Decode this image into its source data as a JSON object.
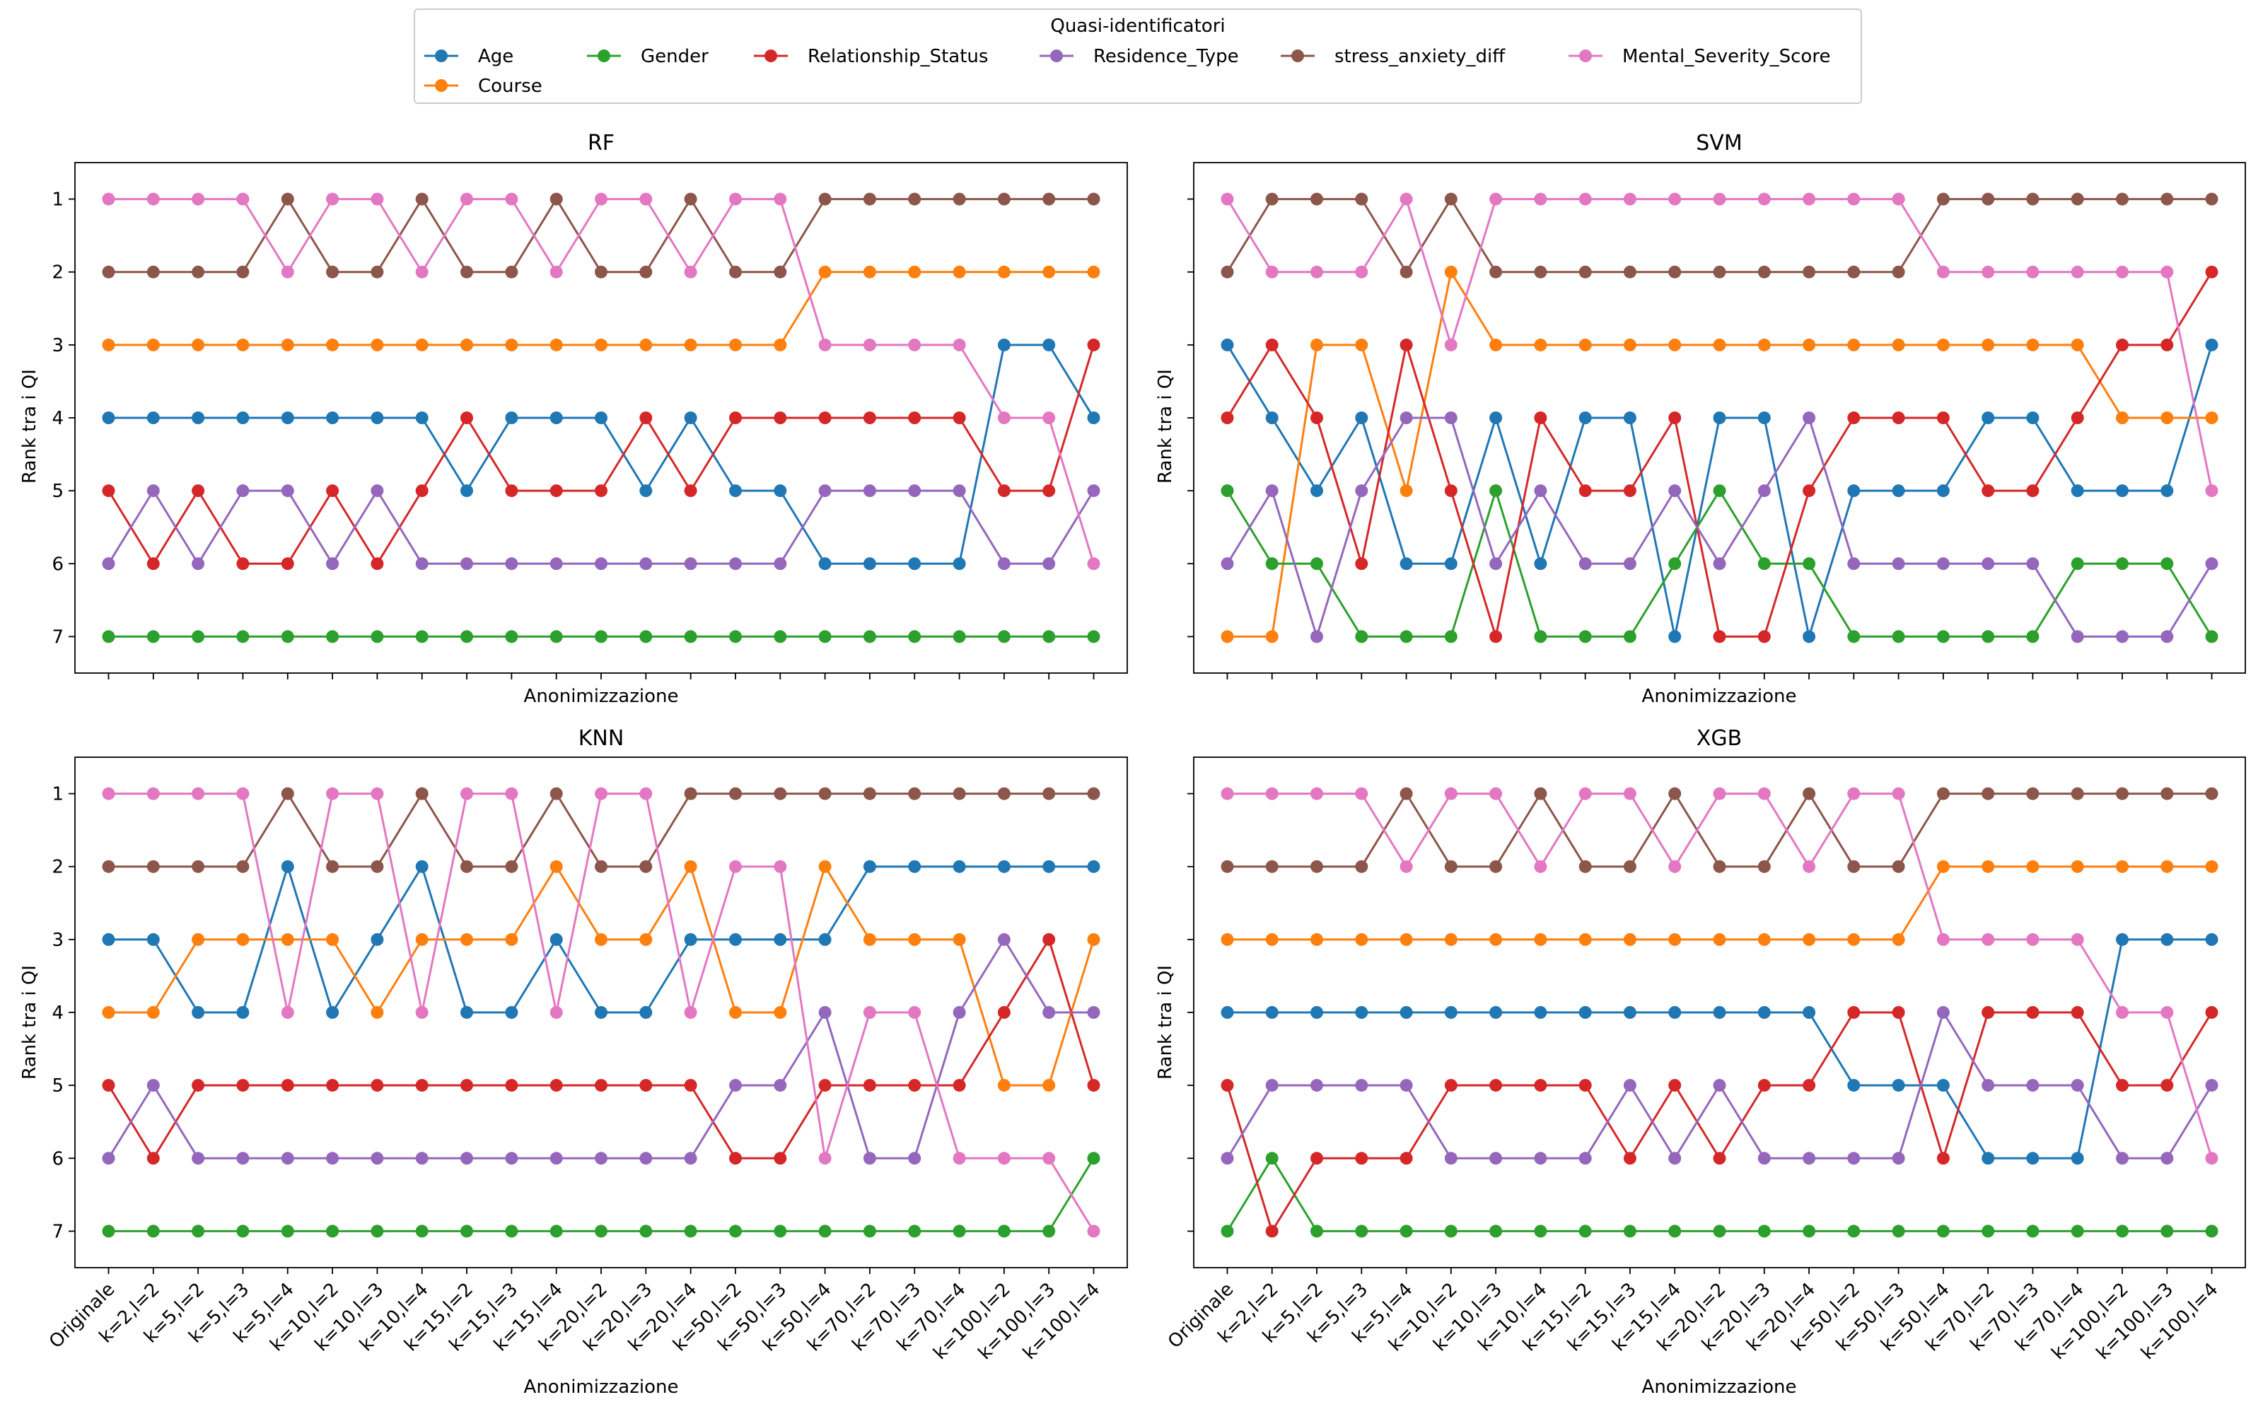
{
  "legend": {
    "title": "Quasi-identificatori",
    "location": "top-center"
  },
  "shared": {
    "xlabel": "Anonimizzazione",
    "ylabel": "Rank tra i QI",
    "yticks": [
      "1",
      "2",
      "3",
      "4",
      "5",
      "6",
      "7"
    ],
    "ylim": [
      7.5,
      0.5
    ],
    "y_inverted": true,
    "grid": false,
    "categories": [
      "Originale",
      "k=2,l=2",
      "k=5,l=2",
      "k=5,l=3",
      "k=5,l=4",
      "k=10,l=2",
      "k=10,l=3",
      "k=10,l=4",
      "k=15,l=2",
      "k=15,l=3",
      "k=15,l=4",
      "k=20,l=2",
      "k=20,l=3",
      "k=20,l=4",
      "k=50,l=2",
      "k=50,l=3",
      "k=50,l=4",
      "k=70,l=2",
      "k=70,l=3",
      "k=70,l=4",
      "k=100,l=2",
      "k=100,l=3",
      "k=100,l=4"
    ],
    "series_meta": [
      {
        "name": "Age",
        "color": "#1f77b4"
      },
      {
        "name": "Course",
        "color": "#ff7f0e"
      },
      {
        "name": "Gender",
        "color": "#2ca02c"
      },
      {
        "name": "Relationship_Status",
        "color": "#d62728"
      },
      {
        "name": "Residence_Type",
        "color": "#9467bd"
      },
      {
        "name": "stress_anxiety_diff",
        "color": "#8c564b"
      },
      {
        "name": "Mental_Severity_Score",
        "color": "#e377c2"
      }
    ]
  },
  "chart_data": [
    {
      "type": "line",
      "title": "RF",
      "xlabel": "Anonimizzazione",
      "ylabel": "Rank tra i QI",
      "show_xticklabels": false,
      "series": [
        {
          "name": "Age",
          "values": [
            4,
            4,
            4,
            4,
            4,
            4,
            4,
            4,
            5,
            4,
            4,
            4,
            5,
            4,
            5,
            5,
            6,
            6,
            6,
            6,
            3,
            3,
            4
          ]
        },
        {
          "name": "Course",
          "values": [
            3,
            3,
            3,
            3,
            3,
            3,
            3,
            3,
            3,
            3,
            3,
            3,
            3,
            3,
            3,
            3,
            2,
            2,
            2,
            2,
            2,
            2,
            2
          ]
        },
        {
          "name": "Gender",
          "values": [
            7,
            7,
            7,
            7,
            7,
            7,
            7,
            7,
            7,
            7,
            7,
            7,
            7,
            7,
            7,
            7,
            7,
            7,
            7,
            7,
            7,
            7,
            7
          ]
        },
        {
          "name": "Relationship_Status",
          "values": [
            5,
            6,
            5,
            6,
            6,
            5,
            6,
            5,
            4,
            5,
            5,
            5,
            4,
            5,
            4,
            4,
            4,
            4,
            4,
            4,
            5,
            5,
            3
          ]
        },
        {
          "name": "Residence_Type",
          "values": [
            6,
            5,
            6,
            5,
            5,
            6,
            5,
            6,
            6,
            6,
            6,
            6,
            6,
            6,
            6,
            6,
            5,
            5,
            5,
            5,
            6,
            6,
            5
          ]
        },
        {
          "name": "stress_anxiety_diff",
          "values": [
            2,
            2,
            2,
            2,
            1,
            2,
            2,
            1,
            2,
            2,
            1,
            2,
            2,
            1,
            2,
            2,
            1,
            1,
            1,
            1,
            1,
            1,
            1
          ]
        },
        {
          "name": "Mental_Severity_Score",
          "values": [
            1,
            1,
            1,
            1,
            2,
            1,
            1,
            2,
            1,
            1,
            2,
            1,
            1,
            2,
            1,
            1,
            3,
            3,
            3,
            3,
            4,
            4,
            6
          ]
        }
      ]
    },
    {
      "type": "line",
      "title": "SVM",
      "xlabel": "Anonimizzazione",
      "ylabel": "Rank tra i QI",
      "show_xticklabels": false,
      "series": [
        {
          "name": "Age",
          "values": [
            3,
            4,
            5,
            4,
            6,
            6,
            4,
            6,
            4,
            4,
            7,
            4,
            4,
            7,
            5,
            5,
            5,
            4,
            4,
            5,
            5,
            5,
            3
          ]
        },
        {
          "name": "Course",
          "values": [
            7,
            7,
            3,
            3,
            5,
            2,
            3,
            3,
            3,
            3,
            3,
            3,
            3,
            3,
            3,
            3,
            3,
            3,
            3,
            3,
            4,
            4,
            4
          ]
        },
        {
          "name": "Gender",
          "values": [
            5,
            6,
            6,
            7,
            7,
            7,
            5,
            7,
            7,
            7,
            6,
            5,
            6,
            6,
            7,
            7,
            7,
            7,
            7,
            6,
            6,
            6,
            7
          ]
        },
        {
          "name": "Relationship_Status",
          "values": [
            4,
            3,
            4,
            6,
            3,
            5,
            7,
            4,
            5,
            5,
            4,
            7,
            7,
            5,
            4,
            4,
            4,
            5,
            5,
            4,
            3,
            3,
            2
          ]
        },
        {
          "name": "Residence_Type",
          "values": [
            6,
            5,
            7,
            5,
            4,
            4,
            6,
            5,
            6,
            6,
            5,
            6,
            5,
            4,
            6,
            6,
            6,
            6,
            6,
            7,
            7,
            7,
            6
          ]
        },
        {
          "name": "stress_anxiety_diff",
          "values": [
            2,
            1,
            1,
            1,
            2,
            1,
            2,
            2,
            2,
            2,
            2,
            2,
            2,
            2,
            2,
            2,
            1,
            1,
            1,
            1,
            1,
            1,
            1
          ]
        },
        {
          "name": "Mental_Severity_Score",
          "values": [
            1,
            2,
            2,
            2,
            1,
            3,
            1,
            1,
            1,
            1,
            1,
            1,
            1,
            1,
            1,
            1,
            2,
            2,
            2,
            2,
            2,
            2,
            5
          ]
        }
      ]
    },
    {
      "type": "line",
      "title": "KNN",
      "xlabel": "Anonimizzazione",
      "ylabel": "Rank tra i QI",
      "show_xticklabels": true,
      "series": [
        {
          "name": "Age",
          "values": [
            3,
            3,
            4,
            4,
            2,
            4,
            3,
            2,
            4,
            4,
            3,
            4,
            4,
            3,
            3,
            3,
            3,
            2,
            2,
            2,
            2,
            2,
            2
          ]
        },
        {
          "name": "Course",
          "values": [
            4,
            4,
            3,
            3,
            3,
            3,
            4,
            3,
            3,
            3,
            2,
            3,
            3,
            2,
            4,
            4,
            2,
            3,
            3,
            3,
            5,
            5,
            3
          ]
        },
        {
          "name": "Gender",
          "values": [
            7,
            7,
            7,
            7,
            7,
            7,
            7,
            7,
            7,
            7,
            7,
            7,
            7,
            7,
            7,
            7,
            7,
            7,
            7,
            7,
            7,
            7,
            6
          ]
        },
        {
          "name": "Relationship_Status",
          "values": [
            5,
            6,
            5,
            5,
            5,
            5,
            5,
            5,
            5,
            5,
            5,
            5,
            5,
            5,
            6,
            6,
            5,
            5,
            5,
            5,
            4,
            3,
            5
          ]
        },
        {
          "name": "Residence_Type",
          "values": [
            6,
            5,
            6,
            6,
            6,
            6,
            6,
            6,
            6,
            6,
            6,
            6,
            6,
            6,
            5,
            5,
            4,
            6,
            6,
            4,
            3,
            4,
            4
          ]
        },
        {
          "name": "stress_anxiety_diff",
          "values": [
            2,
            2,
            2,
            2,
            1,
            2,
            2,
            1,
            2,
            2,
            1,
            2,
            2,
            1,
            1,
            1,
            1,
            1,
            1,
            1,
            1,
            1,
            1
          ]
        },
        {
          "name": "Mental_Severity_Score",
          "values": [
            1,
            1,
            1,
            1,
            4,
            1,
            1,
            4,
            1,
            1,
            4,
            1,
            1,
            4,
            2,
            2,
            6,
            4,
            4,
            6,
            6,
            6,
            7
          ]
        }
      ]
    },
    {
      "type": "line",
      "title": "XGB",
      "xlabel": "Anonimizzazione",
      "ylabel": "Rank tra i QI",
      "show_xticklabels": true,
      "series": [
        {
          "name": "Age",
          "values": [
            4,
            4,
            4,
            4,
            4,
            4,
            4,
            4,
            4,
            4,
            4,
            4,
            4,
            4,
            5,
            5,
            5,
            6,
            6,
            6,
            3,
            3,
            3
          ]
        },
        {
          "name": "Course",
          "values": [
            3,
            3,
            3,
            3,
            3,
            3,
            3,
            3,
            3,
            3,
            3,
            3,
            3,
            3,
            3,
            3,
            2,
            2,
            2,
            2,
            2,
            2,
            2
          ]
        },
        {
          "name": "Gender",
          "values": [
            7,
            6,
            7,
            7,
            7,
            7,
            7,
            7,
            7,
            7,
            7,
            7,
            7,
            7,
            7,
            7,
            7,
            7,
            7,
            7,
            7,
            7,
            7
          ]
        },
        {
          "name": "Relationship_Status",
          "values": [
            5,
            7,
            6,
            6,
            6,
            5,
            5,
            5,
            5,
            6,
            5,
            6,
            5,
            5,
            4,
            4,
            6,
            4,
            4,
            4,
            5,
            5,
            4
          ]
        },
        {
          "name": "Residence_Type",
          "values": [
            6,
            5,
            5,
            5,
            5,
            6,
            6,
            6,
            6,
            5,
            6,
            5,
            6,
            6,
            6,
            6,
            4,
            5,
            5,
            5,
            6,
            6,
            5
          ]
        },
        {
          "name": "stress_anxiety_diff",
          "values": [
            2,
            2,
            2,
            2,
            1,
            2,
            2,
            1,
            2,
            2,
            1,
            2,
            2,
            1,
            2,
            2,
            1,
            1,
            1,
            1,
            1,
            1,
            1
          ]
        },
        {
          "name": "Mental_Severity_Score",
          "values": [
            1,
            1,
            1,
            1,
            2,
            1,
            1,
            2,
            1,
            1,
            2,
            1,
            1,
            2,
            1,
            1,
            3,
            3,
            3,
            3,
            4,
            4,
            6
          ]
        }
      ]
    }
  ]
}
